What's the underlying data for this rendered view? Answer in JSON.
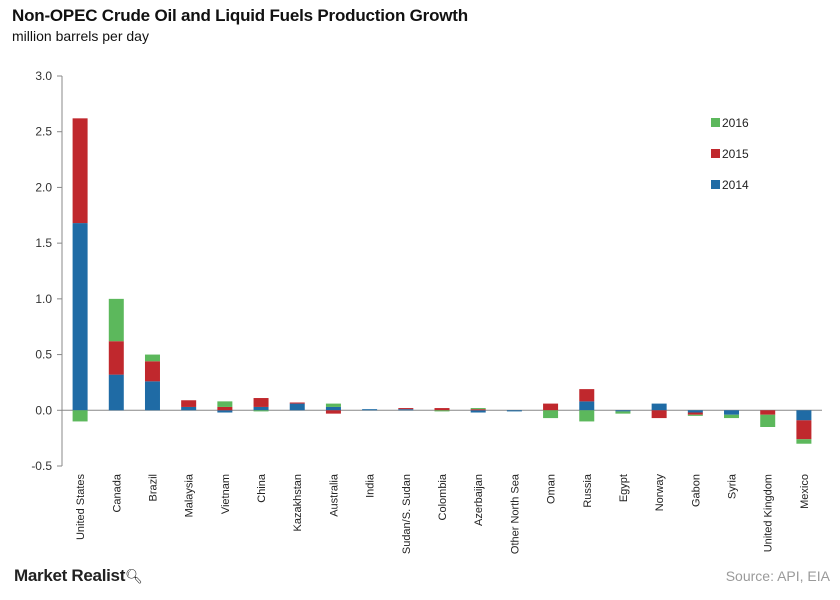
{
  "header": {
    "title": "Non-OPEC Crude Oil and Liquid Fuels Production Growth",
    "subtitle": "million barrels per day"
  },
  "footer": {
    "brand": "Market Realist",
    "source": "Source: API, EIA"
  },
  "colors": {
    "2014": "#1f6ba5",
    "2015": "#c0282d",
    "2016": "#5cb85c",
    "axis": "#888888",
    "grid": "#bbbbbb"
  },
  "chart_data": {
    "type": "bar",
    "stacked": true,
    "title": "Non-OPEC Crude Oil and Liquid Fuels Production Growth",
    "ylabel": "million barrels per day",
    "ylim": [
      -0.5,
      3.0
    ],
    "yticks": [
      -0.5,
      0.0,
      0.5,
      1.0,
      1.5,
      2.0,
      2.5,
      3.0
    ],
    "legend_position": "top-right",
    "grid": false,
    "categories": [
      "United States",
      "Canada",
      "Brazil",
      "Malaysia",
      "Vietnam",
      "China",
      "Kazakhstan",
      "Australia",
      "India",
      "Sudan/S. Sudan",
      "Colombia",
      "Azerbaijan",
      "Other North Sea",
      "Oman",
      "Russia",
      "Egypt",
      "Norway",
      "Gabon",
      "Syria",
      "United Kingdom",
      "Mexico"
    ],
    "series": [
      {
        "name": "2014",
        "values": [
          1.68,
          0.32,
          0.26,
          0.03,
          -0.02,
          0.03,
          0.06,
          0.03,
          0.01,
          0.01,
          0.0,
          -0.02,
          -0.01,
          0.0,
          0.08,
          -0.01,
          0.06,
          -0.02,
          -0.04,
          0.0,
          -0.09
        ]
      },
      {
        "name": "2015",
        "values": [
          0.94,
          0.3,
          0.18,
          0.06,
          0.03,
          0.08,
          0.01,
          -0.03,
          0.0,
          0.01,
          0.02,
          0.01,
          0.0,
          0.06,
          0.11,
          0.0,
          -0.07,
          -0.02,
          0.0,
          -0.04,
          -0.17
        ]
      },
      {
        "name": "2016",
        "values": [
          -0.1,
          0.38,
          0.06,
          0.0,
          0.05,
          -0.01,
          0.0,
          0.03,
          0.0,
          0.0,
          -0.01,
          0.01,
          0.0,
          -0.07,
          -0.1,
          -0.02,
          0.0,
          -0.01,
          -0.03,
          -0.11,
          -0.04
        ]
      }
    ]
  }
}
